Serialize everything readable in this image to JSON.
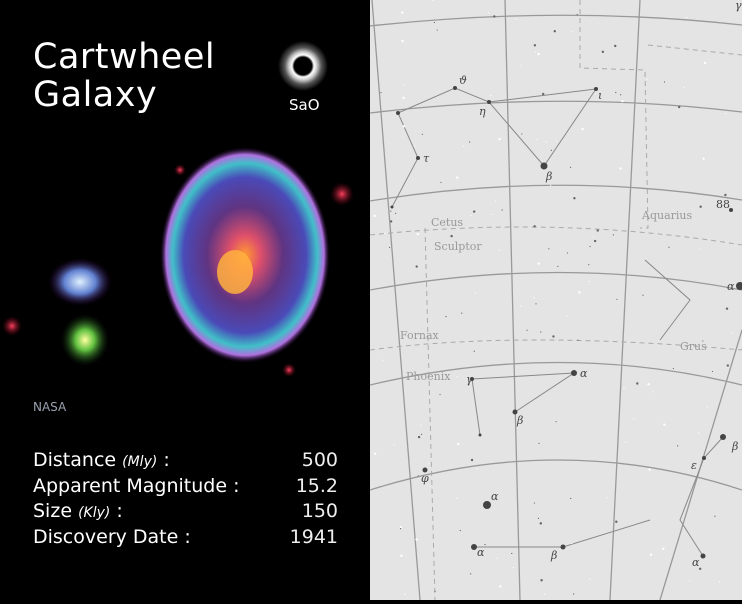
{
  "title": {
    "line1": "Cartwheel",
    "line2": "Galaxy"
  },
  "logo": {
    "text": "SaO"
  },
  "image_credit": "NASA",
  "stats": [
    {
      "label": "Distance",
      "unit": "(Mly)",
      "sep": ":",
      "value": "500"
    },
    {
      "label": "Apparent Magnitude",
      "unit": "",
      "sep": ":",
      "value": "15.2"
    },
    {
      "label": "Size",
      "unit": "(Kly)",
      "sep": ":",
      "value": "150"
    },
    {
      "label": "Discovery Date",
      "unit": "",
      "sep": ":",
      "value": "1941"
    }
  ],
  "star_chart": {
    "constellations": [
      "Cetus",
      "Sculptor",
      "Aquarius",
      "Fornax",
      "Phoenix",
      "Grus"
    ],
    "star_labels": [
      "ϑ",
      "η",
      "ι",
      "β",
      "τ",
      "88",
      "α",
      "γ",
      "α",
      "γ",
      "β",
      "β",
      "ε",
      "φ",
      "α",
      "α",
      "β",
      "α"
    ]
  }
}
